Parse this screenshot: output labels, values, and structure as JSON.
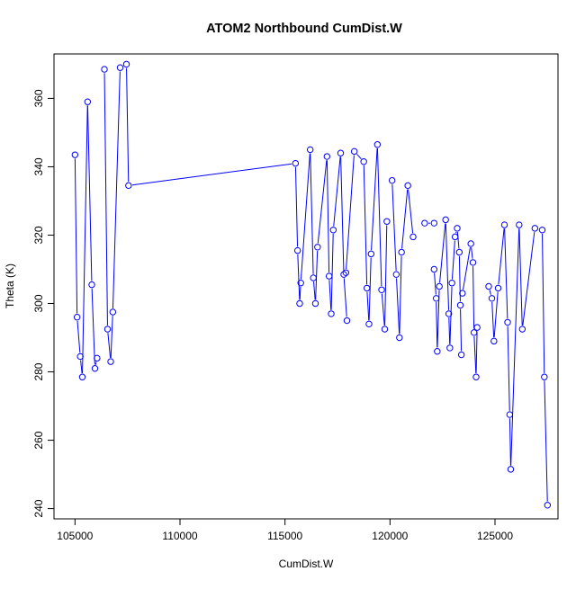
{
  "chart_data": {
    "type": "line",
    "title": "ATOM2 Northbound CumDist.W",
    "xlabel": "CumDist.W",
    "ylabel": "Theta (K)",
    "xlim": [
      104000,
      128000
    ],
    "ylim": [
      237,
      373
    ],
    "x_ticks": [
      105000,
      110000,
      115000,
      120000,
      125000
    ],
    "y_ticks": [
      240,
      260,
      280,
      300,
      320,
      340,
      360
    ],
    "grid": false,
    "line_color": "#0000ff",
    "marker": "open-circle",
    "segments": [
      {
        "x": [
          105000,
          105100,
          105250,
          105350,
          105600,
          105800,
          105950,
          106050
        ],
        "y": [
          343.5,
          296,
          284.5,
          278.5,
          359,
          305.5,
          281,
          284
        ]
      },
      {
        "x": [
          106400,
          106550,
          106700,
          106800,
          107150,
          107450,
          107550,
          115500,
          115600,
          115700,
          115750,
          116200,
          116350,
          116450,
          116550,
          117000,
          117100,
          117200,
          117300,
          117650,
          117800,
          117950
        ],
        "y": [
          368.5,
          292.5,
          283,
          297.5,
          369,
          370,
          334.5,
          341,
          315.5,
          300,
          306,
          345,
          307.5,
          300,
          316.5,
          343,
          308,
          297,
          321.5,
          344,
          308.5,
          295
        ]
      },
      {
        "x": [
          117900,
          118300,
          118750,
          118900,
          119000,
          119100,
          119400,
          119600,
          119750,
          119850
        ],
        "y": [
          309,
          344.5,
          341.5,
          304.5,
          294,
          314.5,
          346.5,
          304,
          292.5,
          324
        ]
      },
      {
        "x": [
          120100,
          120300,
          120450,
          120550,
          120850,
          121100
        ],
        "y": [
          336,
          308.5,
          290,
          315,
          334.5,
          319.5
        ]
      },
      {
        "x": [
          121650,
          122100
        ],
        "y": [
          323.5,
          323.5
        ]
      },
      {
        "x": [
          122100,
          122200,
          122250,
          122350,
          122650,
          122800,
          122850,
          122950,
          123100,
          123200,
          123300,
          123350,
          123400
        ],
        "y": [
          310,
          301.5,
          286,
          305,
          324.5,
          297,
          287,
          306,
          319.5,
          322,
          315,
          299.5,
          285
        ]
      },
      {
        "x": [
          123450,
          123850,
          123950,
          124000,
          124100,
          124150
        ],
        "y": [
          303,
          317.5,
          312,
          291.5,
          278.5,
          293
        ]
      },
      {
        "x": [
          124700,
          124850,
          124950,
          125150,
          125450,
          125600,
          125700,
          125750,
          126150,
          126300,
          126900,
          127250,
          127350,
          127500
        ],
        "y": [
          305,
          301.5,
          289,
          304.5,
          323,
          294.5,
          267.5,
          251.5,
          323,
          292.5,
          322,
          321.5,
          278.5,
          241
        ]
      }
    ]
  }
}
